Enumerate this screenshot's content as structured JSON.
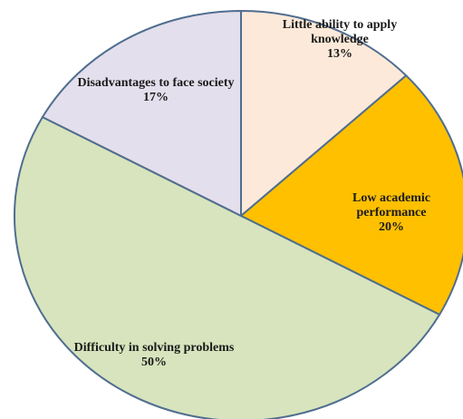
{
  "chart_data": {
    "type": "pie",
    "categories": [
      "Little ability to apply knowledge",
      "Low academic performance",
      "Difficulty in solving problems",
      "Disadvantages to face society"
    ],
    "values": [
      13,
      20,
      50,
      17
    ],
    "value_labels": [
      "13%",
      "20%",
      "50%",
      "17%"
    ],
    "colors": [
      "#fde9d9",
      "#ffc000",
      "#d7e4bd",
      "#e4dfec"
    ]
  }
}
